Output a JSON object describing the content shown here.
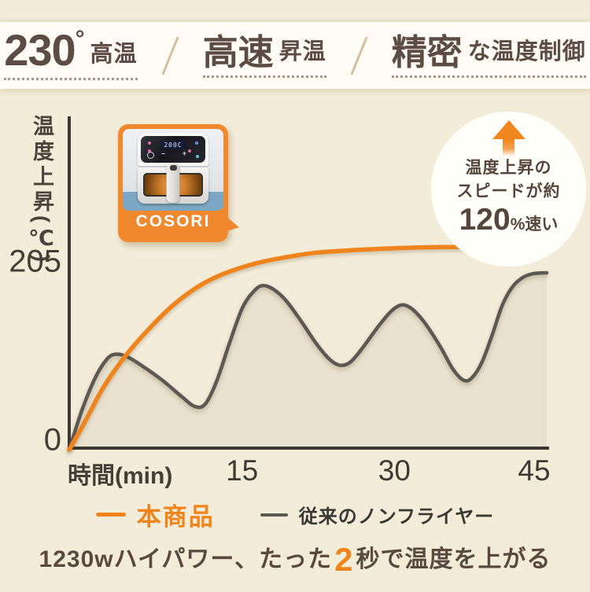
{
  "banner": {
    "feature1": {
      "big": "230",
      "degree": "°",
      "small": "高温"
    },
    "feature2": {
      "big": "高速",
      "small": "昇温"
    },
    "feature3": {
      "big": "精密",
      "small": "な温度制御"
    }
  },
  "badge": {
    "line1": "温度上昇の",
    "line2": "スピードが約",
    "big": "120",
    "suffix": "%速い"
  },
  "product_card": {
    "brand": "COSORI",
    "display": "200C"
  },
  "footer": {
    "pre": "1230wハイパワー、たった",
    "highlight": "2",
    "post": "秒で温度を上がる"
  },
  "colors": {
    "accent_orange": "#ef841c",
    "text_brown": "#5c4c43",
    "background": "#f3ecd9",
    "curve_gray": "#5c5955"
  },
  "chart_data": {
    "type": "line",
    "title": "",
    "xlabel": "時間(min)",
    "ylabel": "温度上昇(℃)",
    "x_ticks": [
      15,
      30,
      45
    ],
    "y_ticks": [
      0,
      205
    ],
    "xlim": [
      0,
      46.5
    ],
    "ylim": [
      0,
      240
    ],
    "grid": false,
    "legend_position": "bottom",
    "annotation": "温度上昇のスピードが約120%速い",
    "series": [
      {
        "name": "本商品",
        "color": "#ef841c",
        "points": [
          [
            0,
            0
          ],
          [
            1.5,
            30
          ],
          [
            3,
            62
          ],
          [
            4.5,
            88
          ],
          [
            6,
            110
          ],
          [
            8,
            135
          ],
          [
            10,
            157
          ],
          [
            12.5,
            178
          ],
          [
            15,
            192
          ],
          [
            18,
            203
          ],
          [
            21,
            210
          ],
          [
            24,
            215
          ],
          [
            28,
            218
          ],
          [
            32,
            220
          ],
          [
            36,
            221
          ],
          [
            38.5,
            221
          ]
        ]
      },
      {
        "name": "従来のノンフライヤー",
        "color": "#5c5955",
        "points": [
          [
            0,
            0
          ],
          [
            1.2,
            42
          ],
          [
            2.5,
            78
          ],
          [
            3.6,
            98
          ],
          [
            4.4,
            104
          ],
          [
            5.5,
            102
          ],
          [
            7,
            92
          ],
          [
            9,
            76
          ],
          [
            11,
            57
          ],
          [
            12.2,
            47
          ],
          [
            13.2,
            50
          ],
          [
            14.3,
            75
          ],
          [
            15.5,
            115
          ],
          [
            16.8,
            155
          ],
          [
            18,
            174
          ],
          [
            18.8,
            179
          ],
          [
            19.8,
            175
          ],
          [
            21,
            163
          ],
          [
            22.5,
            140
          ],
          [
            24,
            115
          ],
          [
            25.3,
            98
          ],
          [
            26.3,
            92
          ],
          [
            27.3,
            96
          ],
          [
            28.5,
            112
          ],
          [
            30,
            135
          ],
          [
            31.3,
            152
          ],
          [
            32.3,
            158
          ],
          [
            33.3,
            153
          ],
          [
            34.5,
            138
          ],
          [
            36,
            112
          ],
          [
            37.2,
            88
          ],
          [
            38.2,
            76
          ],
          [
            39,
            78
          ],
          [
            40,
            95
          ],
          [
            41,
            125
          ],
          [
            42,
            158
          ],
          [
            43,
            178
          ],
          [
            44,
            188
          ],
          [
            45,
            192
          ],
          [
            46.3,
            193
          ]
        ]
      }
    ]
  }
}
